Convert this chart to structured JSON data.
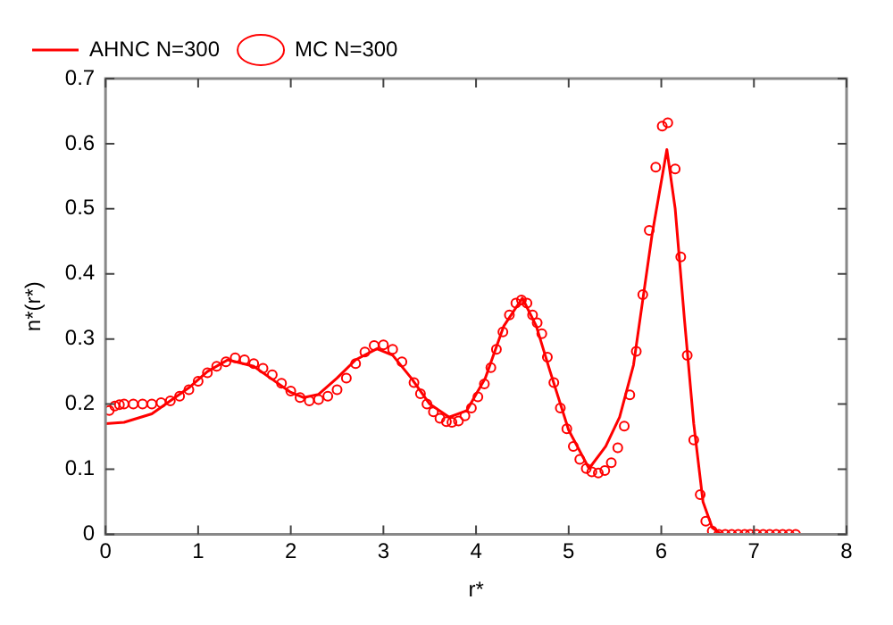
{
  "chart_data": {
    "type": "line",
    "xlabel": "r*",
    "ylabel": "n*(r*)",
    "xlim": [
      0,
      8
    ],
    "ylim": [
      0,
      0.7
    ],
    "xticks": [
      0,
      1,
      2,
      3,
      4,
      5,
      6,
      7,
      8
    ],
    "yticks": [
      0,
      0.1,
      0.2,
      0.3,
      0.4,
      0.5,
      0.6,
      0.7
    ],
    "grid": false,
    "legend": "top left",
    "series": [
      {
        "name": "AHNC N=300",
        "type": "line",
        "color": "#ff0000",
        "marker": "none",
        "line_style": "solid",
        "x": [
          0,
          0.2,
          0.5,
          0.9,
          1.1,
          1.32,
          1.6,
          1.8,
          2.0,
          2.14,
          2.3,
          2.5,
          2.7,
          2.93,
          3.1,
          3.3,
          3.5,
          3.71,
          3.9,
          4.1,
          4.3,
          4.5,
          4.65,
          4.8,
          5.0,
          5.22,
          5.4,
          5.55,
          5.7,
          5.8,
          5.9,
          6.06,
          6.15,
          6.25,
          6.35,
          6.45,
          6.55,
          6.65,
          7.5
        ],
        "values": [
          0.17,
          0.172,
          0.185,
          0.225,
          0.25,
          0.268,
          0.258,
          0.238,
          0.218,
          0.21,
          0.215,
          0.24,
          0.268,
          0.285,
          0.275,
          0.24,
          0.2,
          0.18,
          0.19,
          0.24,
          0.32,
          0.363,
          0.32,
          0.25,
          0.16,
          0.101,
          0.135,
          0.18,
          0.26,
          0.36,
          0.46,
          0.591,
          0.5,
          0.33,
          0.17,
          0.05,
          0.01,
          0,
          0
        ]
      },
      {
        "name": "MC N=300",
        "type": "scatter",
        "color": "#ff0000",
        "marker": "circle",
        "x": [
          0.04,
          0.1,
          0.15,
          0.2,
          0.3,
          0.4,
          0.5,
          0.6,
          0.7,
          0.8,
          0.9,
          1.0,
          1.1,
          1.2,
          1.3,
          1.4,
          1.5,
          1.6,
          1.7,
          1.8,
          1.9,
          2.0,
          2.1,
          2.2,
          2.3,
          2.4,
          2.5,
          2.6,
          2.7,
          2.8,
          2.9,
          3.0,
          3.1,
          3.2,
          3.33,
          3.4,
          3.47,
          3.54,
          3.61,
          3.68,
          3.74,
          3.81,
          3.88,
          3.95,
          4.02,
          4.09,
          4.16,
          4.22,
          4.29,
          4.36,
          4.43,
          4.49,
          4.55,
          4.61,
          4.66,
          4.71,
          4.77,
          4.84,
          4.91,
          4.98,
          5.05,
          5.12,
          5.19,
          5.25,
          5.32,
          5.39,
          5.46,
          5.53,
          5.6,
          5.66,
          5.73,
          5.8,
          5.87,
          5.94,
          6.01,
          6.07,
          6.15,
          6.21,
          6.28,
          6.35,
          6.42,
          6.48,
          6.55,
          6.62,
          6.69,
          6.76,
          6.83,
          6.9,
          6.96,
          7.03,
          7.1,
          7.17,
          7.24,
          7.31,
          7.38,
          7.45
        ],
        "values": [
          0.19,
          0.197,
          0.199,
          0.2,
          0.2,
          0.2,
          0.2,
          0.202,
          0.205,
          0.212,
          0.222,
          0.235,
          0.248,
          0.258,
          0.265,
          0.271,
          0.268,
          0.262,
          0.255,
          0.245,
          0.232,
          0.22,
          0.21,
          0.205,
          0.207,
          0.212,
          0.222,
          0.24,
          0.262,
          0.28,
          0.29,
          0.291,
          0.284,
          0.265,
          0.233,
          0.216,
          0.2,
          0.188,
          0.178,
          0.173,
          0.172,
          0.174,
          0.182,
          0.194,
          0.211,
          0.231,
          0.256,
          0.284,
          0.311,
          0.337,
          0.355,
          0.36,
          0.355,
          0.337,
          0.325,
          0.308,
          0.272,
          0.233,
          0.194,
          0.162,
          0.135,
          0.115,
          0.101,
          0.096,
          0.094,
          0.098,
          0.11,
          0.133,
          0.166,
          0.214,
          0.281,
          0.368,
          0.467,
          0.564,
          0.627,
          0.632,
          0.561,
          0.426,
          0.275,
          0.145,
          0.061,
          0.02,
          0.005,
          0,
          0,
          0,
          0,
          0,
          0,
          0,
          0,
          0,
          0,
          0,
          0,
          0
        ]
      }
    ]
  }
}
